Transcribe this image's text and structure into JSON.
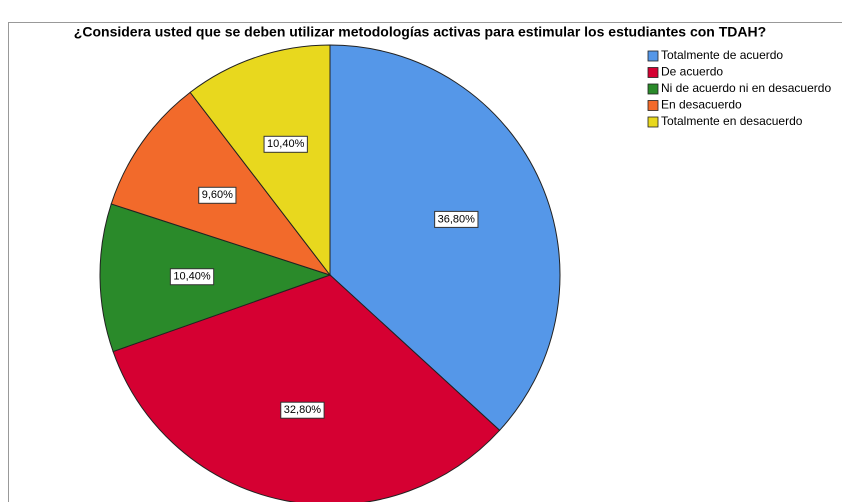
{
  "chart_data": {
    "type": "pie",
    "title": "¿Considera usted que se deben utilizar metodologías activas para estimular los estudiantes con TDAH?",
    "categories": [
      "Totalmente de acuerdo",
      "De acuerdo",
      "Ni de acuerdo ni en desacuerdo",
      "En desacuerdo",
      "Totalmente en desacuerdo"
    ],
    "values": [
      36.8,
      32.8,
      10.4,
      9.6,
      10.4
    ],
    "value_labels": [
      "36,80%",
      "32,80%",
      "10,40%",
      "9,60%",
      "10,40%"
    ],
    "colors": [
      "#5597e8",
      "#d50032",
      "#2a8a2a",
      "#f26a2b",
      "#e8d81e"
    ],
    "legend": "top-right"
  }
}
